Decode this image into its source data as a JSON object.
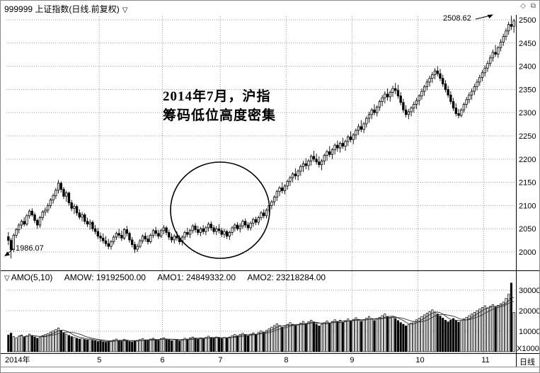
{
  "header": {
    "symbol_title": "999999 上证指数(日线.前复权)",
    "dropdown_glyph": "▽",
    "icon_diamond": "◇",
    "icon_window": "⧉"
  },
  "annotations": {
    "note_line1": "2014年7月，沪指",
    "note_line2": "筹码低位高度密集",
    "high_label": "2508.62",
    "low_label": "1986.07"
  },
  "indicator_row": {
    "toggle": "▽",
    "name": "AMO(5,10)",
    "v1": "AMOW: 19192500.00",
    "v2": "AMO1: 24849332.00",
    "v3": "AMO2: 23218284.00"
  },
  "axes": {
    "volume_unit": "X1000",
    "period_label": "日线"
  },
  "chart_data": {
    "type": "candlestick",
    "title": "999999 上证指数(日线.前复权)",
    "period": "日线",
    "marked_high": 2508.62,
    "marked_low": 1986.07,
    "ylim_price": [
      1980,
      2515
    ],
    "ylim_volume": [
      0,
      34000
    ],
    "grid": "dotted",
    "price_axis_ticks": [
      2500,
      2450,
      2400,
      2350,
      2300,
      2250,
      2200,
      2150,
      2100,
      2050,
      2000
    ],
    "volume_axis_ticks": [
      30000,
      20000,
      10000
    ],
    "time_labels": [
      [
        "2014年",
        0
      ],
      [
        "5",
        35
      ],
      [
        "6",
        59
      ],
      [
        "7",
        81
      ],
      [
        "8",
        106
      ],
      [
        "9",
        131
      ],
      [
        "10",
        156
      ],
      [
        "11",
        181
      ]
    ],
    "indicator": {
      "name": "AMO(5,10)",
      "AMOW": 19192500.0,
      "AMO1": 24849332.0,
      "AMO2": 23218284.0
    },
    "candles": [
      [
        2033,
        2043,
        2015,
        2025
      ],
      [
        2025,
        2030,
        1986.07,
        2005
      ],
      [
        2005,
        2040,
        2000,
        2036
      ],
      [
        2036,
        2052,
        2030,
        2048
      ],
      [
        2048,
        2062,
        2040,
        2058
      ],
      [
        2058,
        2070,
        2050,
        2066
      ],
      [
        2066,
        2075,
        2055,
        2060
      ],
      [
        2060,
        2082,
        2056,
        2078
      ],
      [
        2078,
        2092,
        2072,
        2088
      ],
      [
        2088,
        2094,
        2076,
        2080
      ],
      [
        2080,
        2085,
        2062,
        2068
      ],
      [
        2068,
        2072,
        2050,
        2058
      ],
      [
        2058,
        2078,
        2052,
        2074
      ],
      [
        2074,
        2090,
        2068,
        2086
      ],
      [
        2086,
        2096,
        2078,
        2090
      ],
      [
        2090,
        2105,
        2084,
        2100
      ],
      [
        2100,
        2116,
        2094,
        2112
      ],
      [
        2112,
        2126,
        2104,
        2121
      ],
      [
        2121,
        2138,
        2114,
        2133
      ],
      [
        2133,
        2155,
        2126,
        2148
      ],
      [
        2148,
        2152,
        2128,
        2135
      ],
      [
        2135,
        2140,
        2114,
        2120
      ],
      [
        2120,
        2132,
        2108,
        2127
      ],
      [
        2127,
        2130,
        2100,
        2106
      ],
      [
        2106,
        2112,
        2088,
        2094
      ],
      [
        2094,
        2104,
        2082,
        2098
      ],
      [
        2098,
        2102,
        2078,
        2084
      ],
      [
        2084,
        2092,
        2070,
        2075
      ],
      [
        2075,
        2086,
        2066,
        2080
      ],
      [
        2080,
        2084,
        2060,
        2066
      ],
      [
        2066,
        2074,
        2054,
        2060
      ],
      [
        2060,
        2070,
        2048,
        2064
      ],
      [
        2064,
        2068,
        2044,
        2050
      ],
      [
        2050,
        2058,
        2038,
        2044
      ],
      [
        2044,
        2052,
        2028,
        2034
      ],
      [
        2034,
        2042,
        2022,
        2030
      ],
      [
        2030,
        2040,
        2018,
        2024
      ],
      [
        2024,
        2034,
        2012,
        2018
      ],
      [
        2018,
        2028,
        2006,
        2012
      ],
      [
        2012,
        2026,
        2005,
        2022
      ],
      [
        2022,
        2036,
        2016,
        2032
      ],
      [
        2032,
        2044,
        2026,
        2040
      ],
      [
        2040,
        2050,
        2030,
        2036
      ],
      [
        2036,
        2046,
        2024,
        2030
      ],
      [
        2030,
        2052,
        2026,
        2048
      ],
      [
        2048,
        2056,
        2034,
        2040
      ],
      [
        2040,
        2044,
        2020,
        2026
      ],
      [
        2026,
        2032,
        2010,
        2016
      ],
      [
        2016,
        2022,
        1998,
        2006
      ],
      [
        2006,
        2018,
        2000,
        2012
      ],
      [
        2012,
        2028,
        2008,
        2024
      ],
      [
        2024,
        2038,
        2018,
        2034
      ],
      [
        2034,
        2042,
        2022,
        2028
      ],
      [
        2028,
        2036,
        2016,
        2022
      ],
      [
        2022,
        2040,
        2018,
        2036
      ],
      [
        2036,
        2050,
        2030,
        2046
      ],
      [
        2046,
        2054,
        2034,
        2040
      ],
      [
        2040,
        2048,
        2028,
        2034
      ],
      [
        2034,
        2050,
        2030,
        2046
      ],
      [
        2046,
        2058,
        2038,
        2052
      ],
      [
        2052,
        2056,
        2036,
        2042
      ],
      [
        2042,
        2048,
        2026,
        2032
      ],
      [
        2032,
        2040,
        2020,
        2026
      ],
      [
        2026,
        2038,
        2018,
        2034
      ],
      [
        2034,
        2044,
        2024,
        2030
      ],
      [
        2030,
        2036,
        2016,
        2022
      ],
      [
        2022,
        2036,
        2014,
        2032
      ],
      [
        2032,
        2046,
        2026,
        2042
      ],
      [
        2042,
        2052,
        2032,
        2038
      ],
      [
        2038,
        2050,
        2030,
        2046
      ],
      [
        2046,
        2060,
        2040,
        2056
      ],
      [
        2056,
        2062,
        2042,
        2048
      ],
      [
        2048,
        2056,
        2036,
        2042
      ],
      [
        2042,
        2054,
        2034,
        2050
      ],
      [
        2050,
        2058,
        2038,
        2044
      ],
      [
        2044,
        2056,
        2036,
        2052
      ],
      [
        2052,
        2064,
        2044,
        2060
      ],
      [
        2060,
        2066,
        2046,
        2052
      ],
      [
        2052,
        2058,
        2038,
        2044
      ],
      [
        2044,
        2056,
        2036,
        2050
      ],
      [
        2050,
        2060,
        2040,
        2046
      ],
      [
        2046,
        2052,
        2032,
        2038
      ],
      [
        2038,
        2050,
        2030,
        2044
      ],
      [
        2044,
        2048,
        2028,
        2034
      ],
      [
        2034,
        2046,
        2026,
        2042
      ],
      [
        2042,
        2056,
        2036,
        2052
      ],
      [
        2052,
        2062,
        2044,
        2058
      ],
      [
        2058,
        2064,
        2046,
        2050
      ],
      [
        2050,
        2062,
        2042,
        2056
      ],
      [
        2056,
        2070,
        2050,
        2066
      ],
      [
        2066,
        2072,
        2052,
        2058
      ],
      [
        2058,
        2064,
        2046,
        2052
      ],
      [
        2052,
        2066,
        2046,
        2062
      ],
      [
        2062,
        2074,
        2054,
        2070
      ],
      [
        2070,
        2076,
        2058,
        2064
      ],
      [
        2064,
        2078,
        2058,
        2074
      ],
      [
        2074,
        2088,
        2068,
        2084
      ],
      [
        2084,
        2092,
        2072,
        2078
      ],
      [
        2078,
        2094,
        2072,
        2090
      ],
      [
        2090,
        2104,
        2084,
        2100
      ],
      [
        2100,
        2112,
        2092,
        2108
      ],
      [
        2108,
        2122,
        2100,
        2118
      ],
      [
        2118,
        2134,
        2110,
        2130
      ],
      [
        2130,
        2142,
        2120,
        2138
      ],
      [
        2138,
        2150,
        2126,
        2132
      ],
      [
        2132,
        2146,
        2124,
        2142
      ],
      [
        2142,
        2156,
        2134,
        2152
      ],
      [
        2152,
        2164,
        2142,
        2160
      ],
      [
        2160,
        2172,
        2150,
        2168
      ],
      [
        2168,
        2180,
        2156,
        2164
      ],
      [
        2164,
        2178,
        2154,
        2174
      ],
      [
        2174,
        2188,
        2164,
        2184
      ],
      [
        2184,
        2196,
        2172,
        2190
      ],
      [
        2190,
        2202,
        2178,
        2186
      ],
      [
        2186,
        2200,
        2176,
        2196
      ],
      [
        2196,
        2210,
        2186,
        2206
      ],
      [
        2206,
        2218,
        2194,
        2200
      ],
      [
        2200,
        2212,
        2188,
        2194
      ],
      [
        2194,
        2206,
        2182,
        2188
      ],
      [
        2188,
        2200,
        2176,
        2196
      ],
      [
        2196,
        2212,
        2188,
        2208
      ],
      [
        2208,
        2220,
        2196,
        2216
      ],
      [
        2216,
        2228,
        2204,
        2210
      ],
      [
        2210,
        2224,
        2200,
        2220
      ],
      [
        2220,
        2234,
        2210,
        2230
      ],
      [
        2230,
        2240,
        2216,
        2224
      ],
      [
        2224,
        2238,
        2214,
        2234
      ],
      [
        2234,
        2246,
        2222,
        2228
      ],
      [
        2228,
        2242,
        2218,
        2238
      ],
      [
        2238,
        2252,
        2228,
        2248
      ],
      [
        2248,
        2260,
        2236,
        2242
      ],
      [
        2242,
        2256,
        2232,
        2252
      ],
      [
        2252,
        2266,
        2242,
        2262
      ],
      [
        2262,
        2276,
        2252,
        2270
      ],
      [
        2270,
        2284,
        2258,
        2264
      ],
      [
        2264,
        2280,
        2256,
        2276
      ],
      [
        2276,
        2292,
        2268,
        2288
      ],
      [
        2288,
        2302,
        2278,
        2296
      ],
      [
        2296,
        2310,
        2286,
        2306
      ],
      [
        2306,
        2318,
        2294,
        2300
      ],
      [
        2300,
        2316,
        2292,
        2312
      ],
      [
        2312,
        2328,
        2304,
        2324
      ],
      [
        2324,
        2338,
        2314,
        2332
      ],
      [
        2332,
        2346,
        2320,
        2340
      ],
      [
        2340,
        2352,
        2326,
        2334
      ],
      [
        2334,
        2348,
        2324,
        2344
      ],
      [
        2344,
        2358,
        2334,
        2352
      ],
      [
        2352,
        2364,
        2340,
        2348
      ],
      [
        2348,
        2360,
        2330,
        2336
      ],
      [
        2336,
        2344,
        2316,
        2322
      ],
      [
        2322,
        2330,
        2300,
        2306
      ],
      [
        2306,
        2316,
        2290,
        2296
      ],
      [
        2296,
        2308,
        2286,
        2302
      ],
      [
        2302,
        2314,
        2292,
        2310
      ],
      [
        2310,
        2324,
        2300,
        2318
      ],
      [
        2318,
        2332,
        2308,
        2326
      ],
      [
        2326,
        2340,
        2316,
        2336
      ],
      [
        2336,
        2352,
        2328,
        2346
      ],
      [
        2346,
        2360,
        2336,
        2356
      ],
      [
        2356,
        2372,
        2348,
        2366
      ],
      [
        2366,
        2380,
        2356,
        2374
      ],
      [
        2374,
        2388,
        2364,
        2382
      ],
      [
        2382,
        2396,
        2372,
        2390
      ],
      [
        2390,
        2400,
        2378,
        2384
      ],
      [
        2384,
        2394,
        2368,
        2374
      ],
      [
        2374,
        2382,
        2356,
        2362
      ],
      [
        2362,
        2370,
        2344,
        2350
      ],
      [
        2350,
        2358,
        2332,
        2338
      ],
      [
        2338,
        2346,
        2318,
        2324
      ],
      [
        2324,
        2332,
        2304,
        2310
      ],
      [
        2310,
        2320,
        2292,
        2298
      ],
      [
        2298,
        2308,
        2288,
        2294
      ],
      [
        2294,
        2310,
        2290,
        2306
      ],
      [
        2306,
        2322,
        2300,
        2318
      ],
      [
        2318,
        2334,
        2310,
        2328
      ],
      [
        2328,
        2344,
        2320,
        2338
      ],
      [
        2338,
        2352,
        2328,
        2346
      ],
      [
        2346,
        2362,
        2338,
        2356
      ],
      [
        2356,
        2372,
        2348,
        2366
      ],
      [
        2366,
        2382,
        2358,
        2376
      ],
      [
        2376,
        2392,
        2368,
        2386
      ],
      [
        2386,
        2402,
        2378,
        2396
      ],
      [
        2396,
        2412,
        2388,
        2406
      ],
      [
        2406,
        2424,
        2400,
        2418
      ],
      [
        2418,
        2436,
        2410,
        2430
      ],
      [
        2430,
        2446,
        2420,
        2426
      ],
      [
        2426,
        2444,
        2418,
        2440
      ],
      [
        2440,
        2458,
        2432,
        2452
      ],
      [
        2452,
        2470,
        2444,
        2464
      ],
      [
        2464,
        2482,
        2456,
        2476
      ],
      [
        2476,
        2496,
        2468,
        2490
      ],
      [
        2490,
        2508.62,
        2478,
        2486
      ],
      [
        2486,
        2502,
        2472,
        2498
      ]
    ],
    "volumes": [
      8200,
      9100,
      7400,
      6800,
      7600,
      8200,
      7100,
      7800,
      8600,
      7900,
      7200,
      6600,
      7000,
      7900,
      8400,
      8800,
      9600,
      10200,
      10800,
      11600,
      10400,
      9200,
      8600,
      8000,
      7400,
      7000,
      6600,
      6200,
      6800,
      6000,
      5800,
      6200,
      5600,
      5400,
      5000,
      5200,
      4800,
      4600,
      5000,
      5400,
      5800,
      6200,
      5600,
      5200,
      6000,
      5400,
      5000,
      4800,
      5200,
      5600,
      6000,
      6400,
      5800,
      5400,
      6200,
      6600,
      6000,
      5600,
      6400,
      6800,
      6200,
      5800,
      5400,
      6000,
      5600,
      5200,
      6000,
      6600,
      6200,
      6800,
      7200,
      6600,
      6200,
      6800,
      6400,
      7000,
      7600,
      7000,
      6600,
      7200,
      6800,
      6400,
      7000,
      6600,
      7200,
      7800,
      8400,
      7800,
      8400,
      9000,
      8400,
      7800,
      8600,
      9200,
      8600,
      9400,
      10200,
      9600,
      10400,
      11200,
      12000,
      12800,
      13600,
      12800,
      12000,
      12600,
      13400,
      14200,
      13400,
      12600,
      13200,
      14000,
      14800,
      13800,
      14600,
      15400,
      14400,
      13400,
      12600,
      13400,
      14200,
      15000,
      14000,
      14800,
      15600,
      14600,
      15400,
      14400,
      15200,
      16000,
      15000,
      15800,
      16600,
      15600,
      14800,
      15600,
      16400,
      17200,
      16200,
      15200,
      16000,
      16800,
      17600,
      18400,
      17200,
      16400,
      17200,
      16200,
      15200,
      14200,
      13400,
      12600,
      13200,
      14000,
      14800,
      15600,
      16400,
      17200,
      18000,
      18800,
      19600,
      20400,
      19400,
      18400,
      17400,
      16400,
      15400,
      14600,
      15400,
      16200,
      15200,
      14400,
      15200,
      16000,
      16800,
      17600,
      18400,
      19200,
      20000,
      20800,
      21600,
      22400,
      21400,
      22200,
      23000,
      21800,
      22600,
      23400,
      24200,
      26000,
      28000,
      33500,
      19200
    ]
  }
}
